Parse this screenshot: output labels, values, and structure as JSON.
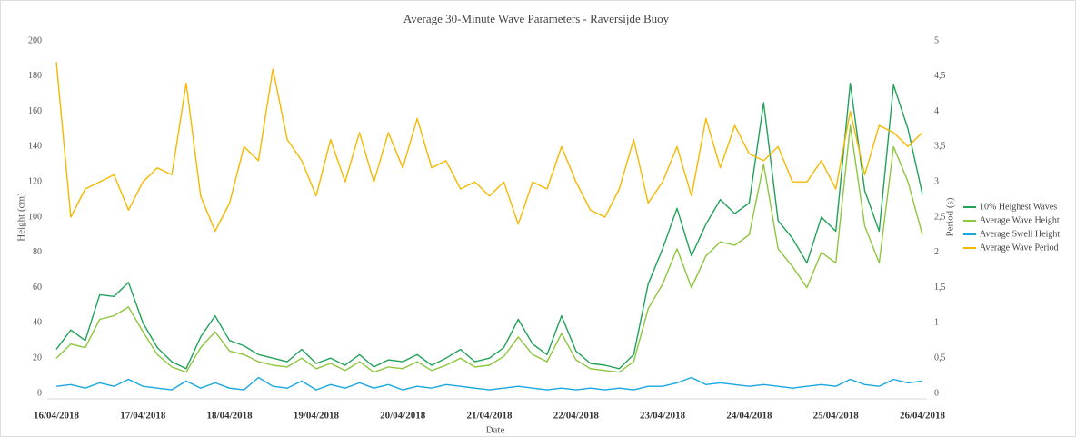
{
  "chart_data": {
    "type": "line",
    "title": "Average 30-Minute Wave Parameters - Raversijde Buoy",
    "x_label": "Date",
    "y_label": "Height (cm)",
    "y2_label": "Period (s)",
    "categories": [
      "16/04/2018",
      null,
      null,
      null,
      null,
      null,
      "17/04/2018",
      null,
      null,
      null,
      null,
      null,
      "18/04/2018",
      null,
      null,
      null,
      null,
      null,
      "19/04/2018",
      null,
      null,
      null,
      null,
      null,
      "20/04/2018",
      null,
      null,
      null,
      null,
      null,
      "21/04/2018",
      null,
      null,
      null,
      null,
      null,
      "22/04/2018",
      null,
      null,
      null,
      null,
      null,
      "23/04/2018",
      null,
      null,
      null,
      null,
      null,
      "24/04/2018",
      null,
      null,
      null,
      null,
      null,
      "25/04/2018",
      null,
      null,
      null,
      null,
      null,
      "26/04/2018"
    ],
    "ylim": [
      0,
      200
    ],
    "yticks": [
      0,
      20,
      40,
      60,
      80,
      100,
      120,
      140,
      160,
      180,
      200
    ],
    "y2lim": [
      0,
      5
    ],
    "y2ticks": [
      0,
      {
        "value": 0.5,
        "label": "0,5"
      },
      1,
      {
        "value": 1.5,
        "label": "1,5"
      },
      2,
      {
        "value": 2.5,
        "label": "2,5"
      },
      3,
      {
        "value": 3.5,
        "label": "3,5"
      },
      4,
      {
        "value": 4.5,
        "label": "4,5"
      },
      5
    ],
    "grid": false,
    "legend": "right",
    "series": [
      {
        "name": "10% Heighest Waves",
        "color": "#22a15a",
        "values": [
          25,
          36,
          30,
          56,
          55,
          63,
          40,
          26,
          18,
          14,
          32,
          44,
          30,
          27,
          22,
          20,
          18,
          25,
          17,
          20,
          16,
          22,
          15,
          19,
          18,
          22,
          16,
          20,
          25,
          18,
          20,
          26,
          42,
          28,
          22,
          44,
          24,
          17,
          16,
          14,
          22,
          62,
          82,
          105,
          78,
          96,
          110,
          102,
          108,
          165,
          98,
          88,
          74,
          100,
          92,
          176,
          115,
          92,
          175,
          150,
          113
        ]
      },
      {
        "name": "Average Wave Height",
        "color": "#8dc63f",
        "values": [
          20,
          28,
          26,
          42,
          44,
          49,
          35,
          22,
          15,
          12,
          26,
          35,
          24,
          22,
          18,
          16,
          15,
          20,
          14,
          17,
          13,
          18,
          12,
          15,
          14,
          18,
          13,
          16,
          20,
          15,
          16,
          21,
          32,
          22,
          18,
          34,
          19,
          14,
          13,
          12,
          18,
          48,
          62,
          82,
          60,
          78,
          86,
          84,
          90,
          130,
          82,
          72,
          60,
          80,
          74,
          152,
          95,
          74,
          140,
          120,
          90
        ]
      },
      {
        "name": "Average Swell Height",
        "color": "#1aa7e0",
        "values": [
          4,
          5,
          3,
          6,
          4,
          8,
          4,
          3,
          2,
          7,
          3,
          6,
          3,
          2,
          9,
          4,
          3,
          7,
          2,
          5,
          3,
          6,
          3,
          5,
          2,
          4,
          3,
          5,
          4,
          3,
          2,
          3,
          4,
          3,
          2,
          3,
          2,
          3,
          2,
          3,
          2,
          4,
          4,
          6,
          9,
          5,
          6,
          5,
          4,
          5,
          4,
          3,
          4,
          5,
          4,
          8,
          5,
          4,
          8,
          6,
          7
        ]
      },
      {
        "name": "Average Wave Period",
        "color": "#f5b800",
        "axis": "y2",
        "values": [
          4.7,
          2.5,
          2.9,
          3.0,
          3.1,
          2.6,
          3.0,
          3.2,
          3.1,
          4.4,
          2.8,
          2.3,
          2.7,
          3.5,
          3.3,
          4.6,
          3.6,
          3.3,
          2.8,
          3.6,
          3.0,
          3.7,
          3.0,
          3.7,
          3.2,
          3.9,
          3.2,
          3.3,
          2.9,
          3.0,
          2.8,
          3.0,
          2.4,
          3.0,
          2.9,
          3.5,
          3.0,
          2.6,
          2.5,
          2.9,
          3.6,
          2.7,
          3.0,
          3.5,
          2.8,
          3.9,
          3.2,
          3.8,
          3.4,
          3.3,
          3.5,
          3.0,
          3.0,
          3.3,
          2.9,
          4.0,
          3.1,
          3.8,
          3.7,
          3.5,
          3.7
        ]
      }
    ]
  }
}
